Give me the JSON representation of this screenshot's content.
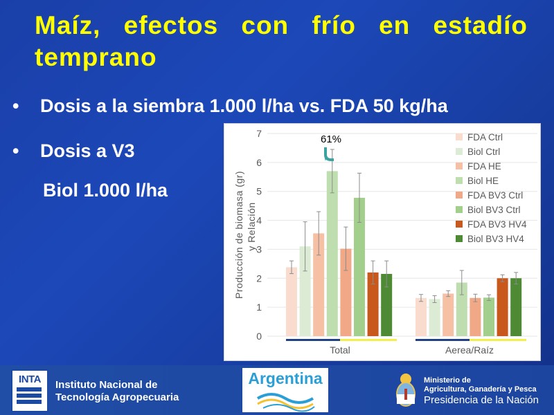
{
  "slide": {
    "title": "Maíz, efectos con frío en estadío temprano",
    "bullets": [
      {
        "marker": "•",
        "text": "Dosis a la siembra 1.000 l/ha vs. FDA 50 kg/ha"
      },
      {
        "marker": "•",
        "text": "Dosis a V3"
      }
    ],
    "sub_line": "Biol 1.000 l/ha"
  },
  "footer": {
    "inta_logo": "INTA",
    "inta_line1": "Instituto Nacional de",
    "inta_line2": "Tecnología Agropecuaria",
    "argentina_logo": "Argentina",
    "ministry_line1": "Ministerio de",
    "ministry_line2": "Agricultura, Ganadería y Pesca",
    "ministry_line3": "Presidencia de la Nación",
    "colors": {
      "inta_blue": "#1c4aa3",
      "argentina_blue": "#2a9fd6"
    }
  },
  "chart_data": {
    "type": "bar",
    "ylabel_line1": "Producción de biomasa (gr)",
    "ylabel_line2": "y Relación",
    "categories": [
      "Total",
      "Aerea/Raíz"
    ],
    "ylim": [
      0,
      7
    ],
    "yticks": [
      "0",
      "1",
      "2",
      "3",
      "4",
      "5",
      "6",
      "7"
    ],
    "legend_position": "right",
    "annotation": "61%",
    "series": [
      {
        "name": "FDA Ctrl",
        "color": "#f9dccd",
        "values": [
          2.38,
          1.32
        ],
        "errors": [
          0.22,
          0.12
        ]
      },
      {
        "name": "Biol Ctrl",
        "color": "#dcebd4",
        "values": [
          3.1,
          1.28
        ],
        "errors": [
          0.85,
          0.12
        ]
      },
      {
        "name": "FDA HE",
        "color": "#f5c0a4",
        "values": [
          3.55,
          1.47
        ],
        "errors": [
          0.75,
          0.1
        ]
      },
      {
        "name": "Biol HE",
        "color": "#bfdeb0",
        "values": [
          5.7,
          1.85
        ],
        "errors": [
          0.75,
          0.42
        ]
      },
      {
        "name": "FDA BV3 Ctrl",
        "color": "#f1a886",
        "values": [
          3.02,
          1.32
        ],
        "errors": [
          0.75,
          0.13
        ]
      },
      {
        "name": "Biol BV3 Ctrl",
        "color": "#a2d08c",
        "values": [
          4.78,
          1.33
        ],
        "errors": [
          0.85,
          0.1
        ]
      },
      {
        "name": "FDA BV3 HV4",
        "color": "#c8581c",
        "values": [
          2.2,
          2.0
        ],
        "errors": [
          0.4,
          0.12
        ]
      },
      {
        "name": "Biol BV3 HV4",
        "color": "#4d8a33",
        "values": [
          2.15,
          2.0
        ],
        "errors": [
          0.45,
          0.2
        ]
      }
    ],
    "underline_colors": [
      "#1f3f87",
      "#f5ef4a"
    ]
  }
}
